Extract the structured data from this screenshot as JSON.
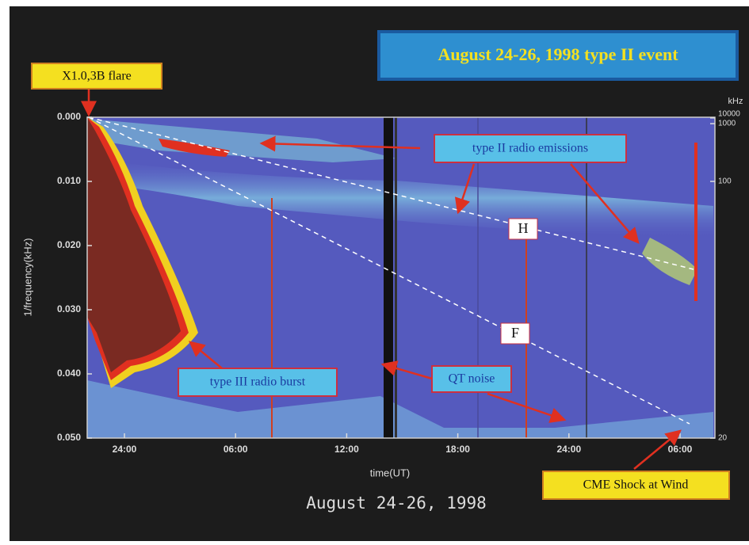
{
  "chart_data": {
    "type": "spectrogram",
    "title": "August 24-26, 1998 type II event",
    "ylabel": "1/frequency(kHz)",
    "xlabel": "time(UT)",
    "caption": "August 24-26, 1998",
    "ylim": [
      0,
      0.05
    ],
    "yticks": [
      {
        "value": 0,
        "label": "0.000"
      },
      {
        "value": 0.01,
        "label": "0.010"
      },
      {
        "value": 0.02,
        "label": "0.020"
      },
      {
        "value": 0.03,
        "label": "0.030"
      },
      {
        "value": 0.04,
        "label": "0.040"
      },
      {
        "value": 0.05,
        "label": "0.050"
      }
    ],
    "xtick_labels": [
      "24:00",
      "06:00",
      "12:00",
      "18:00",
      "24:00",
      "06:00"
    ],
    "y2label": "kHz",
    "y2scale": "reciprocal",
    "y2ticks": [
      10000,
      1000,
      100,
      20
    ],
    "annotations": [
      "X1.0,3B flare",
      "type II radio emissions",
      "H",
      "F",
      "type III radio burst",
      "QT noise",
      "CME Shock at Wind"
    ]
  }
}
